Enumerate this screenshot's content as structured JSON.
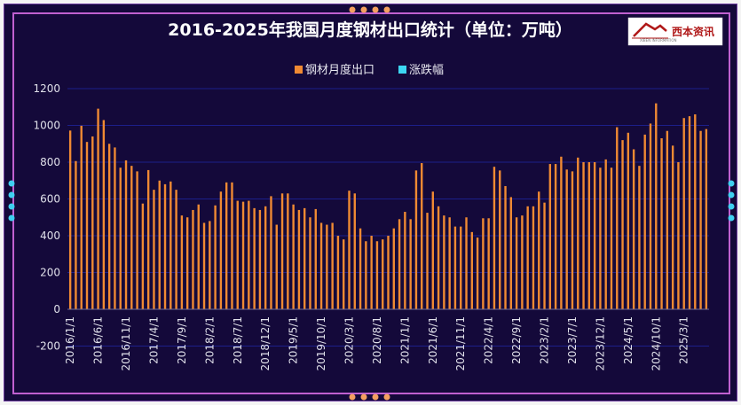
{
  "title": "2016-2025年我国月度钢材出口统计（单位：万吨）",
  "logo": {
    "text": "西本资讯",
    "subtext": "XIBEN INFORMATION"
  },
  "colors": {
    "background": "#14093a",
    "bar": "#f08a33",
    "legend_series2": "#3dd6f2",
    "grid": "#1c1f8a",
    "border_outer": "#6b3a9e",
    "border_inner": "#c060d0",
    "dot_orange": "#f4a060",
    "dot_cyan": "#3fd0f0"
  },
  "chart_data": {
    "type": "bar",
    "title": "2016-2025年我国月度钢材出口统计（单位：万吨）",
    "legend": [
      "钢材月度出口",
      "涨跌幅"
    ],
    "legend_placement": "top-center",
    "grid": true,
    "ylim": [
      -200,
      1200
    ],
    "yticks": [
      -200,
      0,
      200,
      400,
      600,
      800,
      1000,
      1200
    ],
    "x_tick_labels": [
      "2016/1/1",
      "2016/6/1",
      "2016/11/1",
      "2017/4/1",
      "2017/9/1",
      "2018/2/1",
      "2018/7/1",
      "2018/12/1",
      "2019/5/1",
      "2019/10/1",
      "2020/3/1",
      "2020/8/1",
      "2021/1/1",
      "2021/6/1",
      "2021/11/1",
      "2022/4/1",
      "2022/9/1",
      "2023/2/1",
      "2023/7/1",
      "2023/12/1",
      "2024/5/1",
      "2024/10/1",
      "2025/3/1"
    ],
    "start_month": "2016/1",
    "end_month": "2025/7",
    "series": [
      {
        "name": "钢材月度出口",
        "values": [
          972,
          806,
          998,
          910,
          940,
          1091,
          1029,
          900,
          880,
          770,
          810,
          780,
          750,
          575,
          757,
          650,
          700,
          680,
          695,
          650,
          510,
          500,
          540,
          570,
          470,
          480,
          565,
          640,
          690,
          690,
          590,
          585,
          590,
          550,
          540,
          560,
          615,
          460,
          630,
          630,
          570,
          540,
          550,
          500,
          545,
          470,
          460,
          470,
          400,
          380,
          645,
          630,
          440,
          370,
          400,
          370,
          380,
          400,
          440,
          490,
          530,
          490,
          755,
          795,
          525,
          640,
          560,
          510,
          500,
          450,
          450,
          500,
          420,
          390,
          495,
          495,
          775,
          755,
          670,
          610,
          500,
          510,
          560,
          560,
          640,
          580,
          790,
          790,
          830,
          760,
          750,
          825,
          800,
          800,
          800,
          770,
          815,
          770,
          990,
          920,
          960,
          870,
          780,
          950,
          1010,
          1120,
          930,
          970,
          890,
          800,
          1040,
          1050,
          1060,
          970,
          980
        ]
      }
    ]
  }
}
